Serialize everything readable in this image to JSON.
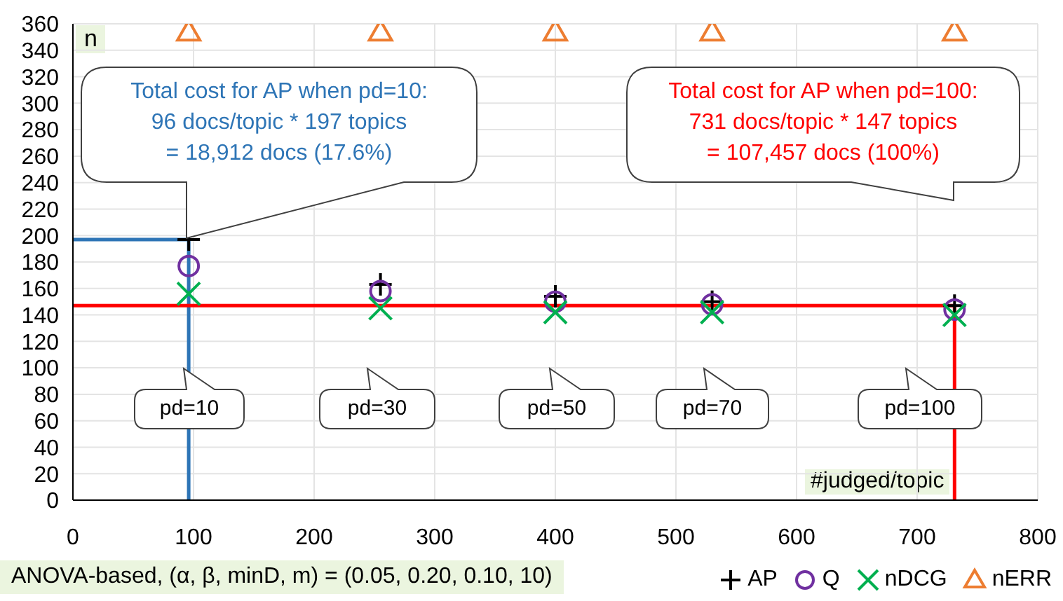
{
  "chart_data": {
    "type": "scatter",
    "xlabel": "#judged/topic",
    "ylabel": "n",
    "xlim": [
      0,
      800
    ],
    "xticks": [
      0,
      100,
      200,
      300,
      400,
      500,
      600,
      700,
      800
    ],
    "ylim": [
      0,
      360
    ],
    "yticks": [
      0,
      20,
      40,
      60,
      80,
      100,
      120,
      140,
      160,
      180,
      200,
      220,
      240,
      260,
      280,
      300,
      320,
      340,
      360
    ],
    "grid": true,
    "legend": "bottom right",
    "x": [
      96,
      255,
      400,
      530,
      731
    ],
    "series": [
      {
        "name": "AP",
        "color": "#000000",
        "marker": "cross",
        "values": [
          197,
          163,
          154,
          150,
          147
        ]
      },
      {
        "name": "Q",
        "color": "#7030a0",
        "marker": "circle",
        "values": [
          177,
          158,
          150,
          148,
          144
        ]
      },
      {
        "name": "nDCG",
        "color": "#00b050",
        "marker": "x",
        "values": [
          156,
          145,
          142,
          142,
          140
        ]
      },
      {
        "name": "nERR",
        "color": "#ed7d31",
        "marker": "triangle",
        "values": [
          354,
          354,
          354,
          354,
          354
        ]
      },
      {
        "type": "line",
        "color": "#2e75b6",
        "x": [
          0,
          96,
          96
        ],
        "values": [
          197,
          197,
          0
        ]
      },
      {
        "type": "line",
        "color": "#ff0000",
        "x": [
          0,
          731,
          731
        ],
        "values": [
          147,
          147,
          0
        ]
      }
    ],
    "annotations": [
      "Total cost for AP when pd=10:\n96 docs/topic * 197 topics\n=  18,912 docs (17.6%)",
      "Total cost for AP when pd=100:\n731 docs/topic * 147 topics\n=  107,457 docs (100%)",
      "pd=10",
      "pd=30",
      "pd=50",
      "pd=70",
      "pd=100",
      "ANOVA-based, (α, β, minD, m) = (0.05, 0.20, 0.10, 10)"
    ]
  }
}
